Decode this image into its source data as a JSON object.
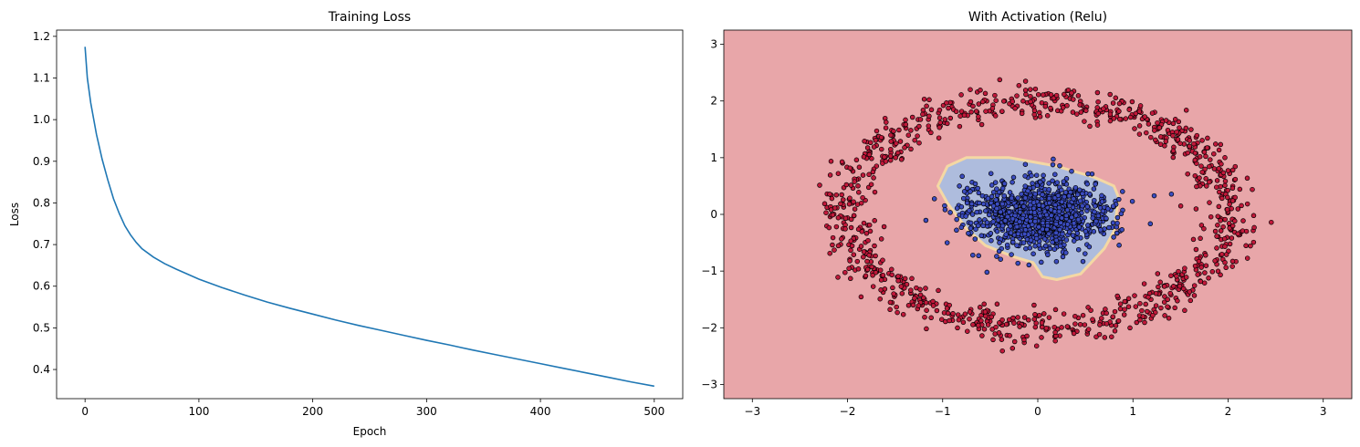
{
  "chart_data": [
    {
      "type": "line",
      "title": "Training Loss",
      "xlabel": "Epoch",
      "ylabel": "Loss",
      "xlim": [
        -25,
        525
      ],
      "ylim": [
        0.33,
        1.215
      ],
      "xticks": [
        0,
        100,
        200,
        300,
        400,
        500
      ],
      "xtick_labels": [
        "0",
        "100",
        "200",
        "300",
        "400",
        "500"
      ],
      "yticks": [
        0.4,
        0.5,
        0.6,
        0.7,
        0.8,
        0.9,
        1.0,
        1.1,
        1.2
      ],
      "ytick_labels": [
        "0.4",
        "0.5",
        "0.6",
        "0.7",
        "0.8",
        "0.9",
        "1.0",
        "1.1",
        "1.2"
      ],
      "grid": false,
      "legend": "none",
      "line_color": "#1f77b4",
      "series": [
        {
          "x": [
            0,
            2,
            5,
            10,
            15,
            20,
            25,
            30,
            35,
            40,
            45,
            50,
            60,
            70,
            80,
            90,
            100,
            120,
            140,
            160,
            180,
            200,
            220,
            240,
            260,
            280,
            300,
            320,
            340,
            360,
            380,
            400,
            420,
            440,
            460,
            480,
            500
          ],
          "values": [
            1.175,
            1.1,
            1.04,
            0.965,
            0.905,
            0.855,
            0.81,
            0.775,
            0.745,
            0.723,
            0.705,
            0.69,
            0.67,
            0.654,
            0.641,
            0.629,
            0.617,
            0.597,
            0.579,
            0.562,
            0.547,
            0.533,
            0.519,
            0.506,
            0.494,
            0.482,
            0.47,
            0.459,
            0.447,
            0.436,
            0.425,
            0.414,
            0.403,
            0.392,
            0.381,
            0.37,
            0.36
          ]
        }
      ]
    },
    {
      "type": "scatter",
      "title": "With Activation (Relu)",
      "xlabel": "",
      "ylabel": "",
      "xlim": [
        -3.3,
        3.3
      ],
      "ylim": [
        -3.25,
        3.25
      ],
      "xticks": [
        -3,
        -2,
        -1,
        0,
        1,
        2,
        3
      ],
      "xtick_labels": [
        "−3",
        "−2",
        "−1",
        "0",
        "1",
        "2",
        "3"
      ],
      "yticks": [
        -3,
        -2,
        -1,
        0,
        1,
        2,
        3
      ],
      "ytick_labels": [
        "−3",
        "−2",
        "−1",
        "0",
        "1",
        "2",
        "3"
      ],
      "grid": false,
      "legend": "none",
      "background_region_color": "#e8a6a9",
      "decision_region": {
        "color": "#aebcdd",
        "boundary_color": "#f4d8a4",
        "polygon": [
          [
            -0.95,
            0.85
          ],
          [
            -0.75,
            1.0
          ],
          [
            -0.3,
            1.0
          ],
          [
            0.2,
            0.85
          ],
          [
            0.6,
            0.65
          ],
          [
            0.8,
            0.5
          ],
          [
            0.85,
            0.3
          ],
          [
            0.8,
            -0.3
          ],
          [
            0.7,
            -0.6
          ],
          [
            0.45,
            -1.05
          ],
          [
            0.2,
            -1.15
          ],
          [
            0.05,
            -1.1
          ],
          [
            -0.05,
            -0.85
          ],
          [
            -0.25,
            -0.75
          ],
          [
            -0.55,
            -0.55
          ],
          [
            -0.75,
            -0.25
          ],
          [
            -0.95,
            0.2
          ],
          [
            -1.05,
            0.5
          ]
        ]
      },
      "series": [
        {
          "class": "outer",
          "distribution": "ring",
          "radius": 2.0,
          "noise": 0.15,
          "count": 1000,
          "color": "#c1183a"
        },
        {
          "class": "inner",
          "distribution": "disk",
          "center": [
            0.0,
            0.0
          ],
          "spread": [
            0.75,
            0.6
          ],
          "count": 1000,
          "color": "#3b4cc0"
        }
      ]
    }
  ]
}
